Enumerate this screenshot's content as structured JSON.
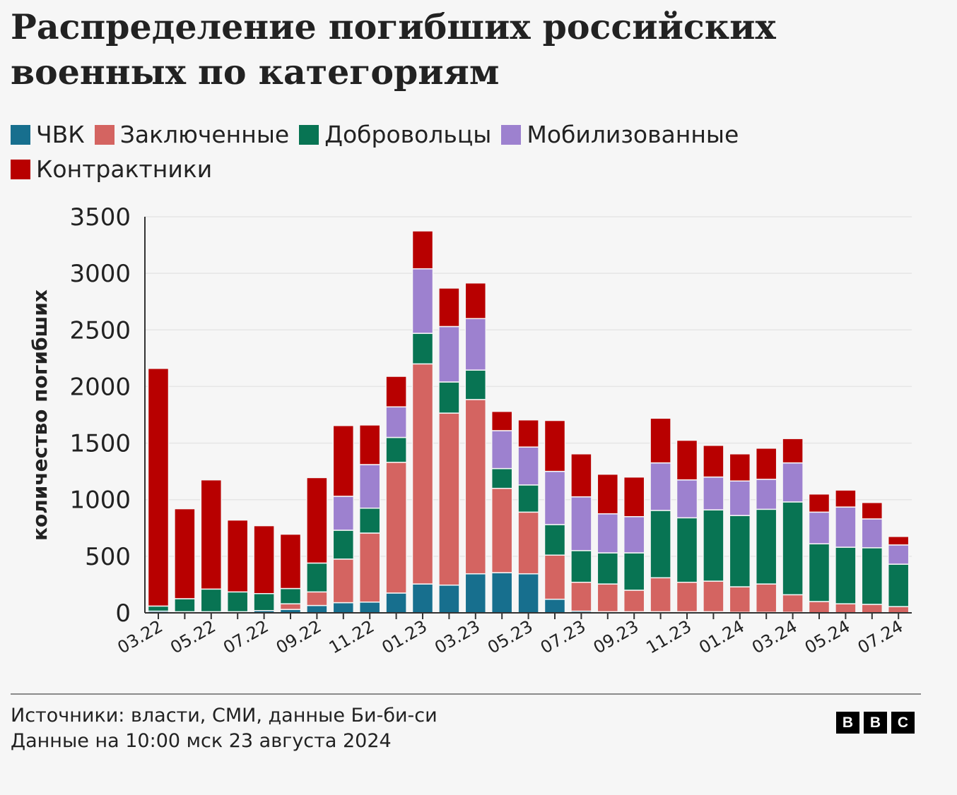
{
  "chart_data": {
    "type": "bar",
    "stacked": true,
    "title": "Распределение погибших российских военных по категориям",
    "ylabel": "количество погибших",
    "xlabel": "",
    "ylim": [
      0,
      3500
    ],
    "yticks": [
      0,
      500,
      1000,
      1500,
      2000,
      2500,
      3000,
      3500
    ],
    "grid": true,
    "legend_position": "top-left",
    "categories": [
      "03.22",
      "04.22",
      "05.22",
      "06.22",
      "07.22",
      "08.22",
      "09.22",
      "10.22",
      "11.22",
      "12.22",
      "01.23",
      "02.23",
      "03.23",
      "04.23",
      "05.23",
      "06.23",
      "07.23",
      "08.23",
      "09.23",
      "10.23",
      "11.23",
      "12.23",
      "01.24",
      "02.24",
      "03.24",
      "04.24",
      "05.24",
      "06.24",
      "07.24"
    ],
    "xtick_labels": [
      "03.22",
      "05.22",
      "07.22",
      "09.22",
      "11.22",
      "01.23",
      "03.23",
      "05.23",
      "07.23",
      "09.23",
      "11.23",
      "01.24",
      "03.24",
      "05.24",
      "07.24"
    ],
    "series": [
      {
        "name": "ЧВК",
        "color": "#176f8e",
        "values": [
          15,
          10,
          10,
          10,
          20,
          30,
          65,
          90,
          95,
          175,
          255,
          245,
          345,
          355,
          345,
          120,
          15,
          10,
          10,
          10,
          10,
          10,
          5,
          5,
          5,
          0,
          0,
          0,
          0
        ]
      },
      {
        "name": "Заключенные",
        "color": "#d46461",
        "values": [
          0,
          0,
          0,
          0,
          0,
          50,
          120,
          385,
          610,
          1155,
          1945,
          1520,
          1540,
          745,
          545,
          390,
          255,
          245,
          190,
          300,
          260,
          270,
          225,
          250,
          155,
          100,
          80,
          75,
          55
        ]
      },
      {
        "name": "Добровольцы",
        "color": "#087453",
        "values": [
          45,
          115,
          200,
          175,
          150,
          135,
          255,
          255,
          220,
          220,
          270,
          275,
          260,
          175,
          240,
          270,
          280,
          275,
          330,
          595,
          570,
          630,
          630,
          660,
          820,
          510,
          500,
          500,
          375
        ]
      },
      {
        "name": "Мобилизованные",
        "color": "#9d81cf",
        "values": [
          0,
          0,
          0,
          0,
          0,
          0,
          0,
          300,
          385,
          270,
          570,
          490,
          455,
          335,
          335,
          470,
          475,
          345,
          320,
          420,
          335,
          290,
          305,
          265,
          345,
          280,
          355,
          255,
          170
        ]
      },
      {
        "name": "Контрактники",
        "color": "#b80000",
        "values": [
          2100,
          795,
          965,
          635,
          600,
          480,
          755,
          625,
          350,
          270,
          335,
          340,
          315,
          170,
          240,
          450,
          380,
          350,
          350,
          395,
          350,
          280,
          240,
          275,
          215,
          160,
          150,
          145,
          75
        ]
      }
    ]
  },
  "footer": {
    "source": "Источники: власти, СМИ, данные Би-би-си",
    "date": "Данные на 10:00 мск 23 августа 2024",
    "logo": [
      "B",
      "B",
      "C"
    ]
  }
}
